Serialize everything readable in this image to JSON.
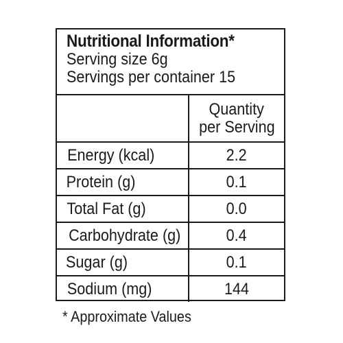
{
  "header": {
    "title": "Nutritional Information*",
    "serving_size": "Serving size 6g",
    "servings_per_container": "Servings per container 15"
  },
  "table": {
    "column_header": [
      "Quantity",
      "per Serving"
    ],
    "rows": [
      {
        "label": "Energy (kcal)",
        "value": "2.2"
      },
      {
        "label": "Protein (g)",
        "value": "0.1"
      },
      {
        "label": "Total Fat (g)",
        "value": "0.0"
      },
      {
        "label": "Carbohydrate (g)",
        "value": "0.4"
      },
      {
        "label": "Sugar (g)",
        "value": "0.1"
      },
      {
        "label": "Sodium (mg)",
        "value": "144"
      }
    ]
  },
  "footnote": "* Approximate Values"
}
